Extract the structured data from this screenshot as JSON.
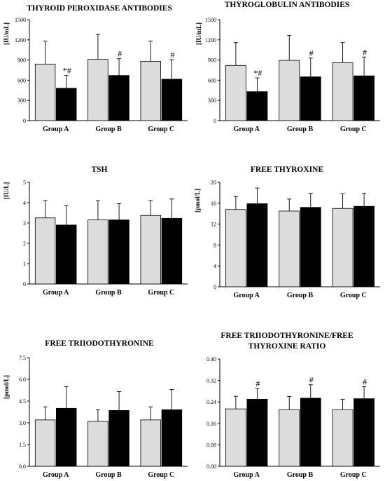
{
  "chart_data": [
    {
      "type": "bar",
      "title": "THYROID PEROXIDASE ANTIBODIES",
      "title_lines": [
        "THYROID PEROXIDASE ANTIBODIES"
      ],
      "ylabel": "[IU/mL]",
      "ylim": [
        0,
        1500
      ],
      "yticks": [
        "0",
        "300",
        "600",
        "900",
        "1200",
        "1500"
      ],
      "tick_values": [
        0,
        300,
        600,
        900,
        1200,
        1500
      ],
      "categories": [
        "Group A",
        "Group B",
        "Group C"
      ],
      "series": [
        {
          "fill": "#dcdcdc",
          "values": [
            840,
            910,
            880
          ],
          "errors": [
            340,
            370,
            300
          ],
          "marks": [
            "",
            "",
            ""
          ]
        },
        {
          "fill": "#000000",
          "values": [
            480,
            670,
            615
          ],
          "errors": [
            190,
            250,
            290
          ],
          "marks": [
            "*#",
            "#",
            "#"
          ]
        }
      ]
    },
    {
      "type": "bar",
      "title": "THYROGLOBULIN ANTIBODIES",
      "title_lines": [
        "THYROGLOBULIN ANTIBODIES"
      ],
      "ylabel": "[IU/mL]",
      "ylim": [
        0,
        1500
      ],
      "yticks": [
        "0",
        "300",
        "600",
        "900",
        "1200",
        "1500"
      ],
      "tick_values": [
        0,
        300,
        600,
        900,
        1200,
        1500
      ],
      "categories": [
        "Group A",
        "Group B",
        "Group C"
      ],
      "series": [
        {
          "fill": "#dcdcdc",
          "values": [
            820,
            895,
            860
          ],
          "errors": [
            340,
            370,
            300
          ],
          "marks": [
            "",
            "",
            ""
          ]
        },
        {
          "fill": "#000000",
          "values": [
            430,
            650,
            665
          ],
          "errors": [
            205,
            280,
            280
          ],
          "marks": [
            "*#",
            "#",
            "#"
          ]
        }
      ]
    },
    {
      "type": "bar",
      "title": "TSH",
      "title_lines": [
        "TSH"
      ],
      "ylabel": "[IU/L]",
      "ylim": [
        0,
        5
      ],
      "yticks": [
        "0",
        "1",
        "2",
        "3",
        "4",
        "5"
      ],
      "tick_values": [
        0,
        1,
        2,
        3,
        4,
        5
      ],
      "categories": [
        "Group A",
        "Group B",
        "Group C"
      ],
      "series": [
        {
          "fill": "#dcdcdc",
          "values": [
            3.25,
            3.15,
            3.37
          ],
          "errors": [
            0.85,
            0.95,
            0.73
          ],
          "marks": [
            "",
            "",
            ""
          ]
        },
        {
          "fill": "#000000",
          "values": [
            2.9,
            3.15,
            3.23
          ],
          "errors": [
            0.95,
            0.8,
            0.95
          ],
          "marks": [
            "",
            "",
            ""
          ]
        }
      ]
    },
    {
      "type": "bar",
      "title": "FREE THYROXINE",
      "title_lines": [
        "FREE THYROXINE"
      ],
      "ylabel": "[pmol/L]",
      "ylim": [
        0,
        20
      ],
      "yticks": [
        "0",
        "4",
        "8",
        "12",
        "16",
        "20"
      ],
      "tick_values": [
        0,
        4,
        8,
        12,
        16,
        20
      ],
      "categories": [
        "Group A",
        "Group B",
        "Group C"
      ],
      "series": [
        {
          "fill": "#dcdcdc",
          "values": [
            14.8,
            14.5,
            15.0
          ],
          "errors": [
            2.5,
            2.3,
            2.8
          ],
          "marks": [
            "",
            "",
            ""
          ]
        },
        {
          "fill": "#000000",
          "values": [
            15.9,
            15.2,
            15.4
          ],
          "errors": [
            3.0,
            2.7,
            2.5
          ],
          "marks": [
            "",
            "",
            ""
          ]
        }
      ]
    },
    {
      "type": "bar",
      "title": "FREE TRIIODOTHYRONINE",
      "title_lines": [
        "FREE TRIIODOTHYRONINE"
      ],
      "ylabel": "[pmol/L]",
      "ylim": [
        0,
        7.5
      ],
      "yticks": [
        "0.0",
        "1.5",
        "3.0",
        "4.5",
        "6.0",
        "7.5"
      ],
      "tick_values": [
        0,
        1.5,
        3.0,
        4.5,
        6.0,
        7.5
      ],
      "categories": [
        "Group A",
        "Group B",
        "Group C"
      ],
      "series": [
        {
          "fill": "#dcdcdc",
          "values": [
            3.2,
            3.1,
            3.2
          ],
          "errors": [
            0.9,
            0.8,
            0.9
          ],
          "marks": [
            "",
            "",
            ""
          ]
        },
        {
          "fill": "#000000",
          "values": [
            4.0,
            3.85,
            3.9
          ],
          "errors": [
            1.5,
            1.3,
            1.4
          ],
          "marks": [
            "",
            "",
            ""
          ]
        }
      ]
    },
    {
      "type": "bar",
      "title": "FREE TRIIODOTHYRONINE/FREE THYROXINE RATIO",
      "title_lines": [
        "FREE TRIIODOTHYRONINE/FREE",
        "THYROXINE RATIO"
      ],
      "ylabel": "",
      "ylim": [
        0,
        0.4
      ],
      "yticks": [
        "0.00",
        "0.08",
        "0.16",
        "0.24",
        "0.32",
        "0.40"
      ],
      "tick_values": [
        0,
        0.08,
        0.16,
        0.24,
        0.32,
        0.4
      ],
      "categories": [
        "Group A",
        "Group B",
        "Group C"
      ],
      "series": [
        {
          "fill": "#dcdcdc",
          "values": [
            0.214,
            0.211,
            0.211
          ],
          "errors": [
            0.047,
            0.049,
            0.039
          ],
          "marks": [
            "",
            "",
            ""
          ]
        },
        {
          "fill": "#000000",
          "values": [
            0.25,
            0.254,
            0.252
          ],
          "errors": [
            0.04,
            0.05,
            0.045
          ],
          "marks": [
            "#",
            "#",
            "#"
          ]
        }
      ]
    }
  ]
}
